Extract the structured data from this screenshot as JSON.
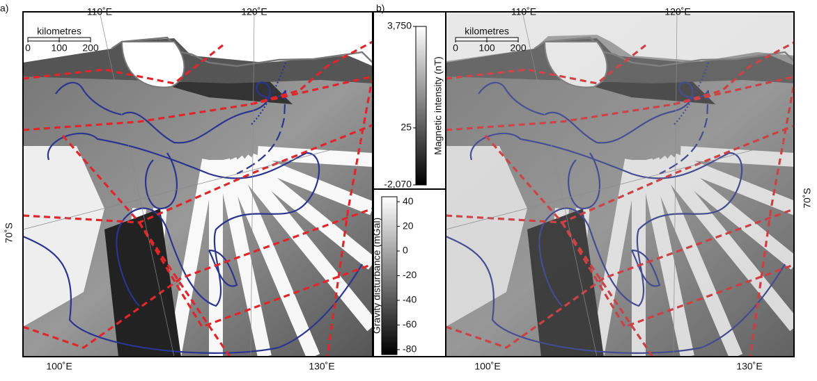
{
  "panels": [
    {
      "label": "a)",
      "lon_labels": [
        "110˚E",
        "120˚E",
        "100˚E",
        "130˚E"
      ],
      "lat_labels": [
        "70˚S"
      ],
      "scale_bar": {
        "title": "kilometres",
        "ticks": [
          0,
          100,
          200
        ]
      }
    },
    {
      "label": "b)",
      "lon_labels": [
        "110˚E",
        "120˚E",
        "100˚E",
        "130˚E"
      ],
      "lat_labels": [
        "70˚S"
      ],
      "scale_bar": {
        "title": "kilometres",
        "ticks": [
          0,
          100,
          200
        ]
      }
    }
  ],
  "colorbars": [
    {
      "title": "Magnetic intensity (nT)",
      "lim": [
        -2070,
        3750
      ],
      "ticks": [
        {
          "value": 3750,
          "label": "3,750"
        },
        25,
        {
          "value": -2070,
          "label": "-2,070"
        }
      ]
    },
    {
      "title": "Gravity disturbance (mGal)",
      "lim": [
        -84,
        44
      ],
      "ticks": [
        40,
        20,
        0,
        -20,
        -40,
        -60,
        -80
      ]
    }
  ]
}
